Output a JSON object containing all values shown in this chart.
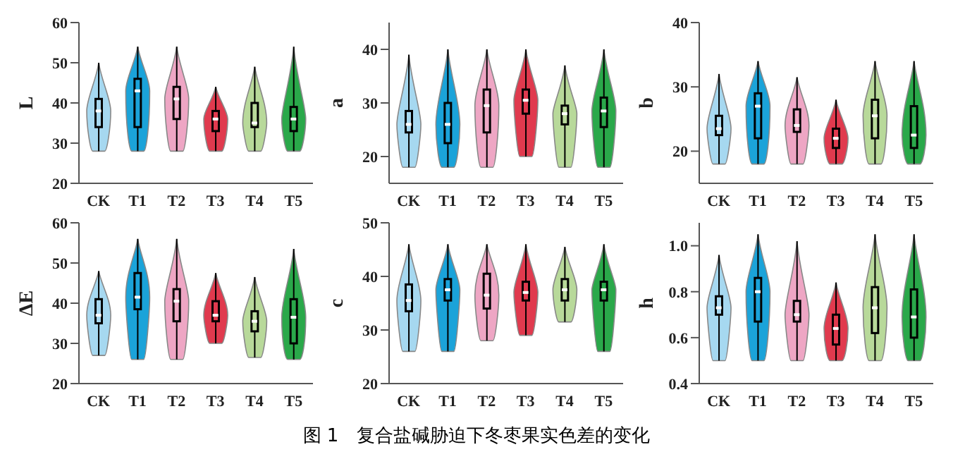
{
  "chart_data": [
    {
      "type": "box",
      "ylabel": "L",
      "categories": [
        "CK",
        "T1",
        "T2",
        "T3",
        "T4",
        "T5"
      ],
      "colors": [
        "#a6d8f0",
        "#1ba3d9",
        "#eea6c4",
        "#e03a4e",
        "#b8d99a",
        "#2aa84a"
      ],
      "ylim": [
        20,
        60
      ],
      "yticks": [
        20,
        30,
        40,
        50,
        60
      ],
      "annotations": [
        "图 1　复合盐碱胁迫下冬枣果实色差的变化"
      ],
      "boxes": [
        {
          "low": 28,
          "q1": 34,
          "median": 38,
          "q3": 41,
          "high": 50
        },
        {
          "low": 28,
          "q1": 34,
          "median": 43,
          "q3": 46,
          "high": 54
        },
        {
          "low": 28,
          "q1": 36,
          "median": 41,
          "q3": 44,
          "high": 54
        },
        {
          "low": 28,
          "q1": 33,
          "median": 36,
          "q3": 38,
          "high": 44
        },
        {
          "low": 28,
          "q1": 34,
          "median": 35,
          "q3": 40,
          "high": 49
        },
        {
          "low": 28,
          "q1": 33,
          "median": 36,
          "q3": 39,
          "high": 54
        }
      ]
    },
    {
      "type": "box",
      "ylabel": "a",
      "categories": [
        "CK",
        "T1",
        "T2",
        "T3",
        "T4",
        "T5"
      ],
      "colors": [
        "#a6d8f0",
        "#1ba3d9",
        "#eea6c4",
        "#e03a4e",
        "#b8d99a",
        "#2aa84a"
      ],
      "ylim": [
        15,
        45
      ],
      "yticks": [
        20,
        30,
        40
      ],
      "boxes": [
        {
          "low": 18,
          "q1": 24.5,
          "median": 26,
          "q3": 28.5,
          "high": 39
        },
        {
          "low": 18,
          "q1": 22.5,
          "median": 26,
          "q3": 30,
          "high": 40
        },
        {
          "low": 18,
          "q1": 24.5,
          "median": 29.5,
          "q3": 32.5,
          "high": 40
        },
        {
          "low": 20,
          "q1": 28,
          "median": 30.5,
          "q3": 32.5,
          "high": 40
        },
        {
          "low": 18,
          "q1": 26,
          "median": 28,
          "q3": 29.5,
          "high": 37
        },
        {
          "low": 18,
          "q1": 25.5,
          "median": 28.5,
          "q3": 31,
          "high": 40
        }
      ]
    },
    {
      "type": "box",
      "ylabel": "b",
      "categories": [
        "CK",
        "T1",
        "T2",
        "T3",
        "T4",
        "T5"
      ],
      "colors": [
        "#a6d8f0",
        "#1ba3d9",
        "#eea6c4",
        "#e03a4e",
        "#b8d99a",
        "#2aa84a"
      ],
      "ylim": [
        15,
        40
      ],
      "yticks": [
        20,
        30,
        40
      ],
      "boxes": [
        {
          "low": 18,
          "q1": 22.5,
          "median": 23.5,
          "q3": 25.5,
          "high": 32
        },
        {
          "low": 18,
          "q1": 22,
          "median": 27,
          "q3": 29,
          "high": 34
        },
        {
          "low": 18,
          "q1": 23,
          "median": 24,
          "q3": 26.5,
          "high": 31.5
        },
        {
          "low": 18,
          "q1": 20.5,
          "median": 22,
          "q3": 23.5,
          "high": 28
        },
        {
          "low": 18,
          "q1": 22,
          "median": 25.5,
          "q3": 28,
          "high": 34
        },
        {
          "low": 18,
          "q1": 20.5,
          "median": 22.5,
          "q3": 27,
          "high": 34
        }
      ]
    },
    {
      "type": "box",
      "ylabel": "ΔE",
      "categories": [
        "CK",
        "T1",
        "T2",
        "T3",
        "T4",
        "T5"
      ],
      "colors": [
        "#a6d8f0",
        "#1ba3d9",
        "#eea6c4",
        "#e03a4e",
        "#b8d99a",
        "#2aa84a"
      ],
      "ylim": [
        20,
        60
      ],
      "yticks": [
        20,
        30,
        40,
        50,
        60
      ],
      "boxes": [
        {
          "low": 27,
          "q1": 35,
          "median": 37,
          "q3": 41,
          "high": 48
        },
        {
          "low": 26,
          "q1": 38.5,
          "median": 41.5,
          "q3": 47.5,
          "high": 56
        },
        {
          "low": 26,
          "q1": 35.5,
          "median": 40.5,
          "q3": 43.5,
          "high": 56
        },
        {
          "low": 30,
          "q1": 35.5,
          "median": 37,
          "q3": 40.5,
          "high": 47.5
        },
        {
          "low": 26.5,
          "q1": 33,
          "median": 35.5,
          "q3": 38,
          "high": 46.5
        },
        {
          "low": 26,
          "q1": 30,
          "median": 36.5,
          "q3": 41,
          "high": 53.5
        }
      ]
    },
    {
      "type": "box",
      "ylabel": "c",
      "categories": [
        "CK",
        "T1",
        "T2",
        "T3",
        "T4",
        "T5"
      ],
      "colors": [
        "#a6d8f0",
        "#1ba3d9",
        "#eea6c4",
        "#e03a4e",
        "#b8d99a",
        "#2aa84a"
      ],
      "ylim": [
        20,
        50
      ],
      "yticks": [
        20,
        30,
        40,
        50
      ],
      "boxes": [
        {
          "low": 26,
          "q1": 33.5,
          "median": 35.5,
          "q3": 38.5,
          "high": 46
        },
        {
          "low": 26,
          "q1": 35.5,
          "median": 37.5,
          "q3": 39.5,
          "high": 46
        },
        {
          "low": 28,
          "q1": 34,
          "median": 36.5,
          "q3": 40.5,
          "high": 46
        },
        {
          "low": 29,
          "q1": 35.5,
          "median": 37,
          "q3": 39,
          "high": 46
        },
        {
          "low": 31.5,
          "q1": 35.5,
          "median": 37.5,
          "q3": 39.5,
          "high": 45.5
        },
        {
          "low": 26,
          "q1": 35.5,
          "median": 37.5,
          "q3": 39,
          "high": 46
        }
      ]
    },
    {
      "type": "box",
      "ylabel": "h",
      "categories": [
        "CK",
        "T1",
        "T2",
        "T3",
        "T4",
        "T5"
      ],
      "colors": [
        "#a6d8f0",
        "#1ba3d9",
        "#eea6c4",
        "#e03a4e",
        "#b8d99a",
        "#2aa84a"
      ],
      "ylim": [
        0.4,
        1.1
      ],
      "yticks": [
        {
          "value": 0.4,
          "label": "0.4"
        },
        {
          "value": 0.6,
          "label": "0.6"
        },
        {
          "value": 0.8,
          "label": "0.8"
        },
        {
          "value": 1.0,
          "label": "1.0"
        }
      ],
      "boxes": [
        {
          "low": 0.5,
          "q1": 0.7,
          "median": 0.73,
          "q3": 0.78,
          "high": 0.96
        },
        {
          "low": 0.5,
          "q1": 0.67,
          "median": 0.8,
          "q3": 0.86,
          "high": 1.05
        },
        {
          "low": 0.5,
          "q1": 0.67,
          "median": 0.7,
          "q3": 0.76,
          "high": 1.02
        },
        {
          "low": 0.5,
          "q1": 0.57,
          "median": 0.64,
          "q3": 0.7,
          "high": 0.84
        },
        {
          "low": 0.5,
          "q1": 0.62,
          "median": 0.73,
          "q3": 0.82,
          "high": 1.05
        },
        {
          "low": 0.5,
          "q1": 0.6,
          "median": 0.69,
          "q3": 0.81,
          "high": 1.05
        }
      ]
    }
  ]
}
